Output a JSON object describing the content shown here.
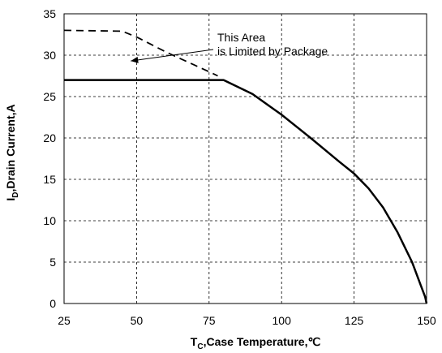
{
  "chart_data": {
    "type": "line",
    "title": "",
    "xlabel": {
      "main": "T",
      "sub": "C",
      "rest": ",Case Temperature,℃"
    },
    "ylabel": {
      "main": "I",
      "sub": "D",
      "rest": ",Drain Current,A"
    },
    "xlim": [
      25,
      150
    ],
    "ylim": [
      0,
      35
    ],
    "xticks": [
      25,
      50,
      75,
      100,
      125,
      150
    ],
    "yticks": [
      0,
      5,
      10,
      15,
      20,
      25,
      30,
      35
    ],
    "grid": true,
    "annotation": {
      "lines": [
        "This Area",
        "is Limited by Package"
      ],
      "arrow_target": [
        48,
        29.3
      ]
    },
    "series": [
      {
        "style": "dashed",
        "x": [
          25,
          45,
          50,
          55,
          60,
          65,
          70,
          75,
          78
        ],
        "y": [
          33,
          32.9,
          32.2,
          31.3,
          30.4,
          29.6,
          28.8,
          28.0,
          27.5
        ]
      },
      {
        "style": "solid",
        "x": [
          25,
          80,
          90,
          100,
          110,
          120,
          125,
          130,
          135,
          140,
          145,
          148,
          149.5,
          150
        ],
        "y": [
          27,
          27,
          25.3,
          22.8,
          20.0,
          17.1,
          15.7,
          13.9,
          11.6,
          8.6,
          5.0,
          2.2,
          0.8,
          0
        ]
      }
    ]
  }
}
